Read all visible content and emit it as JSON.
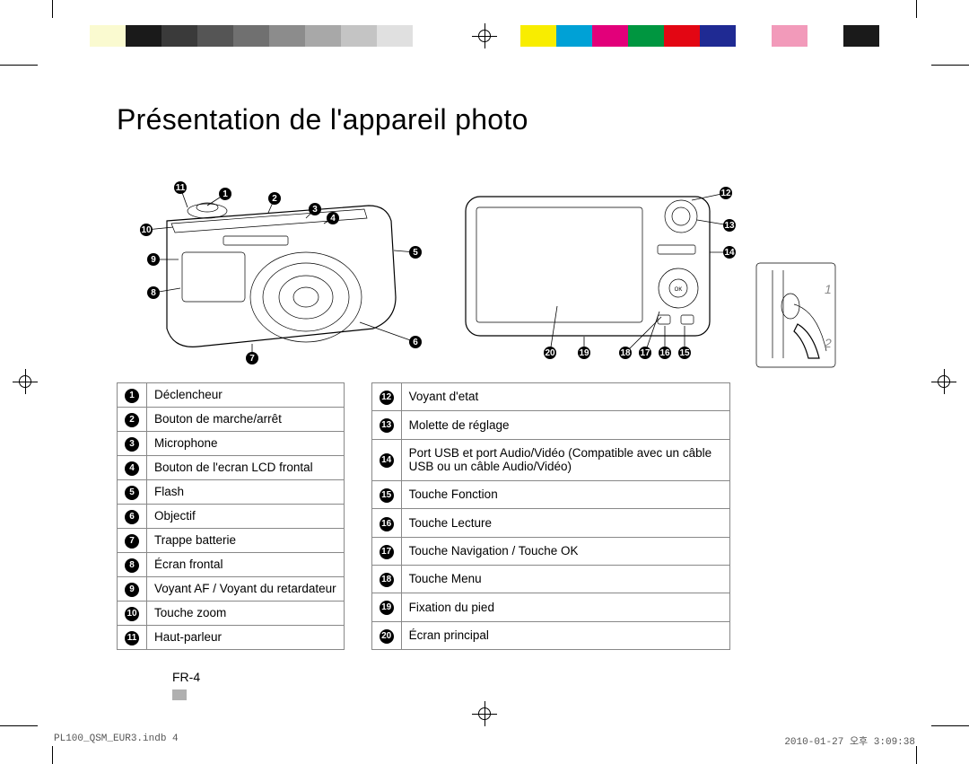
{
  "title": "Présentation de l'appareil photo",
  "page_label": "FR-4",
  "footer_left": "PL100_QSM_EUR3.indb   4",
  "footer_right": "2010-01-27   오후 3:09:38",
  "color_bar": [
    "#ffffff",
    "#fafad0",
    "#1a1a1a",
    "#3a3a3a",
    "#555555",
    "#707070",
    "#8c8c8c",
    "#a8a8a8",
    "#c4c4c4",
    "#e0e0e0",
    "#ffffff",
    "#ffffff",
    "#ffffff",
    "#f8ed00",
    "#00a1d6",
    "#e2007a",
    "#009640",
    "#e30613",
    "#1f2a93",
    "#ffffff",
    "#f29aba",
    "#ffffff",
    "#1a1a1a",
    "#ffffff"
  ],
  "strap_labels": [
    "1",
    "2"
  ],
  "left_parts": [
    {
      "n": 1,
      "label": "Déclencheur"
    },
    {
      "n": 2,
      "label": "Bouton de marche/arrêt"
    },
    {
      "n": 3,
      "label": "Microphone"
    },
    {
      "n": 4,
      "label": "Bouton de l'ecran LCD frontal"
    },
    {
      "n": 5,
      "label": "Flash"
    },
    {
      "n": 6,
      "label": "Objectif"
    },
    {
      "n": 7,
      "label": "Trappe batterie"
    },
    {
      "n": 8,
      "label": "Écran frontal"
    },
    {
      "n": 9,
      "label": "Voyant AF / Voyant du retardateur"
    },
    {
      "n": 10,
      "label": "Touche zoom"
    },
    {
      "n": 11,
      "label": "Haut-parleur"
    }
  ],
  "right_parts": [
    {
      "n": 12,
      "label": "Voyant d'etat"
    },
    {
      "n": 13,
      "label": "Molette de réglage"
    },
    {
      "n": 14,
      "label": "Port USB et port Audio/Vidéo (Compatible avec un câble USB ou un câble Audio/Vidéo)"
    },
    {
      "n": 15,
      "label": "Touche Fonction"
    },
    {
      "n": 16,
      "label": "Touche Lecture"
    },
    {
      "n": 17,
      "label": "Touche Navigation / Touche OK"
    },
    {
      "n": 18,
      "label": "Touche Menu"
    },
    {
      "n": 19,
      "label": "Fixation du pied"
    },
    {
      "n": 20,
      "label": "Écran principal"
    }
  ],
  "styling": {
    "title_fontsize": 32,
    "table_fontsize": 13.5,
    "text_color": "#000000",
    "border_color": "#888888",
    "background": "#ffffff",
    "circnum_bg": "#000000",
    "circnum_fg": "#ffffff"
  }
}
